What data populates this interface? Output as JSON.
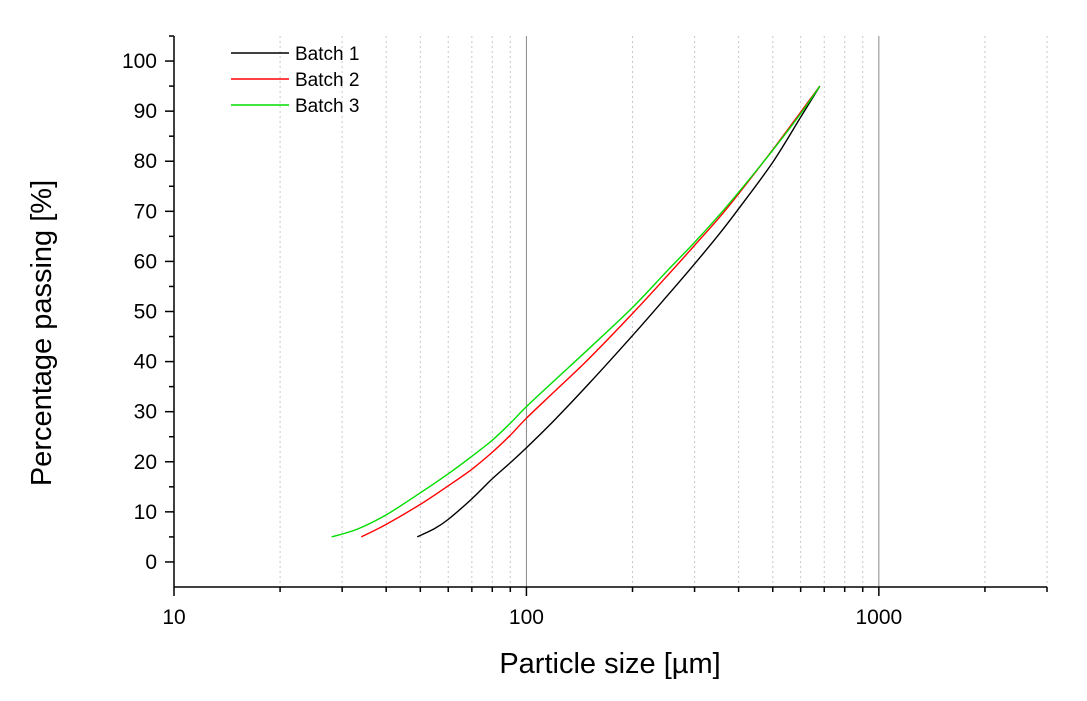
{
  "chart_data": {
    "type": "line",
    "title": "",
    "xlabel": "Particle size [µm]",
    "ylabel": "Percentage passing [%]",
    "xscale": "log",
    "xlim": [
      10,
      3000
    ],
    "ylim": [
      -5,
      105
    ],
    "x_ticks": [
      10,
      100,
      1000
    ],
    "x_tick_labels": [
      "10",
      "100",
      "1000"
    ],
    "y_ticks": [
      0,
      10,
      20,
      30,
      40,
      50,
      60,
      70,
      80,
      90,
      100
    ],
    "y_tick_labels": [
      "0",
      "10",
      "20",
      "30",
      "40",
      "50",
      "60",
      "70",
      "80",
      "90",
      "100"
    ],
    "grid": "vertical",
    "legend_position": "top-left",
    "series": [
      {
        "name": "Batch 1",
        "color": "#000000",
        "x": [
          49,
          55,
          60,
          70,
          80,
          90,
          100,
          120,
          150,
          200,
          250,
          300,
          350,
          400,
          500,
          600,
          680
        ],
        "y": [
          5,
          6.7,
          8.5,
          12.6,
          16.6,
          19.8,
          22.8,
          28.3,
          35.5,
          45.2,
          53,
          59.5,
          65.2,
          70.5,
          79.8,
          88.8,
          95
        ]
      },
      {
        "name": "Batch 2",
        "color": "#ff0000",
        "x": [
          34,
          40,
          50,
          60,
          70,
          80,
          90,
          100,
          120,
          150,
          200,
          250,
          300,
          350,
          400,
          500,
          600,
          680
        ],
        "y": [
          5,
          7.5,
          11.5,
          15.2,
          18.5,
          21.9,
          25.3,
          28.7,
          34,
          40.5,
          49.6,
          57,
          63.2,
          68.5,
          73.5,
          82.3,
          89.8,
          95
        ]
      },
      {
        "name": "Batch 3",
        "color": "#00dd00",
        "x": [
          28,
          33,
          40,
          50,
          60,
          70,
          80,
          90,
          100,
          120,
          150,
          200,
          250,
          300,
          350,
          400,
          500,
          600,
          680
        ],
        "y": [
          5,
          6.5,
          9.4,
          13.8,
          17.6,
          21.1,
          24.3,
          27.7,
          31,
          36.2,
          42.5,
          50.8,
          58,
          63.8,
          69,
          73.8,
          82.2,
          89.5,
          95
        ]
      }
    ]
  }
}
